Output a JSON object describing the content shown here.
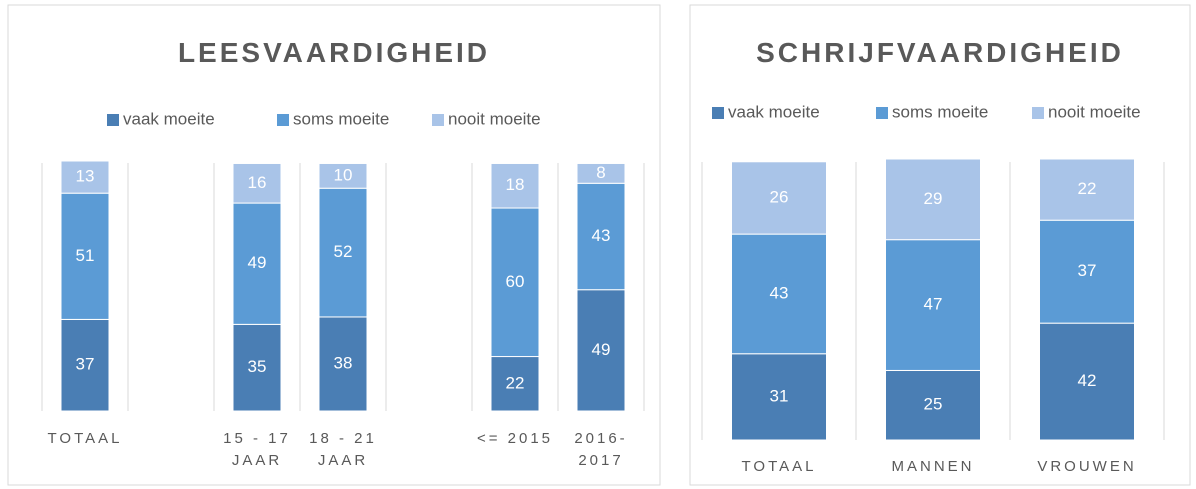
{
  "chart_data": [
    {
      "type": "bar",
      "stacked": true,
      "title": "LEESVAARDIGHEID",
      "categories": [
        "TOTAAL",
        null,
        "15 - 17 JAAR",
        "18 - 21 JAAR",
        null,
        "<= 2015",
        "2016-2017"
      ],
      "series": [
        {
          "name": "vaak moeite",
          "color": "#4a7eb4",
          "values": [
            37,
            null,
            35,
            38,
            null,
            22,
            49
          ]
        },
        {
          "name": "soms moeite",
          "color": "#5b9bd5",
          "values": [
            51,
            null,
            49,
            52,
            null,
            60,
            43
          ]
        },
        {
          "name": "nooit moeite",
          "color": "#a9c4e8",
          "values": [
            13,
            null,
            16,
            10,
            null,
            18,
            8
          ]
        }
      ]
    },
    {
      "type": "bar",
      "stacked": true,
      "title": "SCHRIJFVAARDIGHEID",
      "categories": [
        "TOTAAL",
        "MANNEN",
        "VROUWEN"
      ],
      "series": [
        {
          "name": "vaak moeite",
          "color": "#4a7eb4",
          "values": [
            31,
            25,
            42
          ]
        },
        {
          "name": "soms moeite",
          "color": "#5b9bd5",
          "values": [
            43,
            47,
            37
          ]
        },
        {
          "name": "nooit moeite",
          "color": "#a9c4e8",
          "values": [
            26,
            29,
            22
          ]
        }
      ]
    }
  ]
}
